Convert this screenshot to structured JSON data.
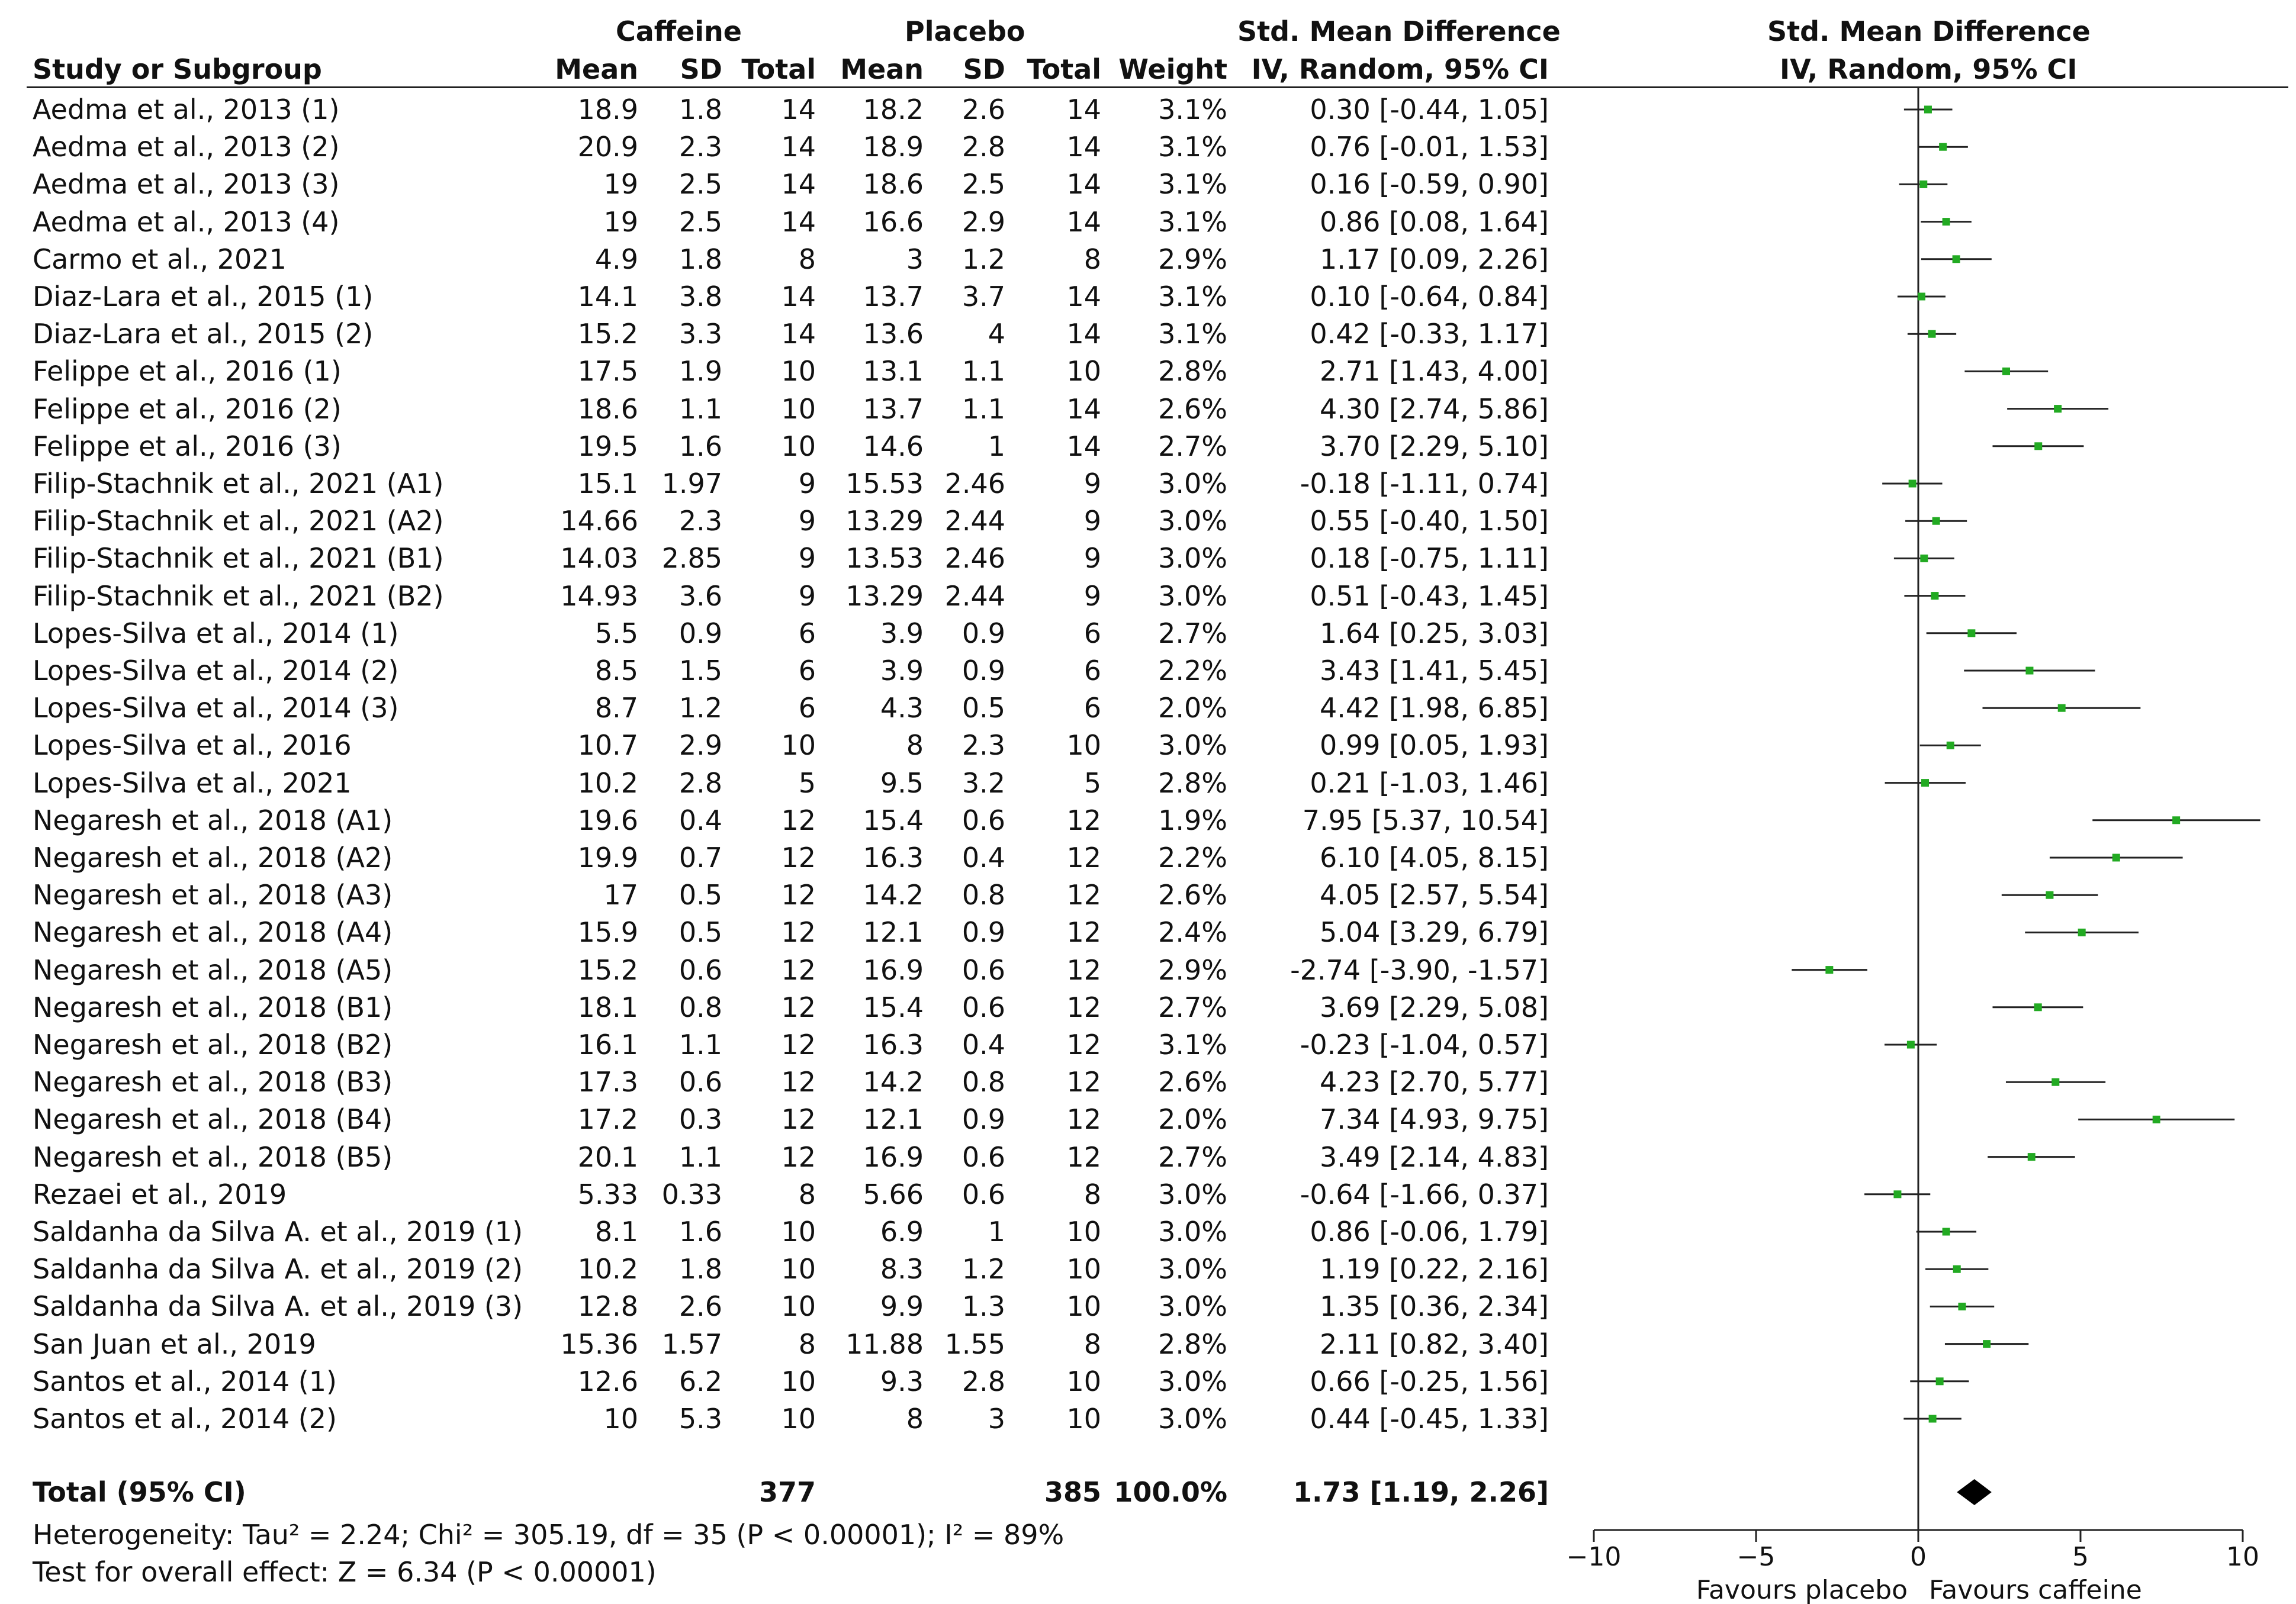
{
  "headers": {
    "study": "Study or Subgroup",
    "caffeine_group": "Caffeine",
    "placebo_group": "Placebo",
    "mean": "Mean",
    "sd": "SD",
    "total": "Total",
    "weight": "Weight",
    "smd_title": "Std. Mean Difference",
    "smd_method": "IV, Random, 95% CI",
    "plot_title": "Std. Mean Difference",
    "plot_method": "IV, Random, 95% CI"
  },
  "rows": [
    {
      "study": "Aedma et al., 2013 (1)",
      "c_mean": "18.9",
      "c_sd": "1.8",
      "c_total": "14",
      "p_mean": "18.2",
      "p_sd": "2.6",
      "p_total": "14",
      "weight": "3.1%",
      "ci": "0.30 [-0.44, 1.05]"
    },
    {
      "study": "Aedma et al., 2013 (2)",
      "c_mean": "20.9",
      "c_sd": "2.3",
      "c_total": "14",
      "p_mean": "18.9",
      "p_sd": "2.8",
      "p_total": "14",
      "weight": "3.1%",
      "ci": "0.76 [-0.01, 1.53]"
    },
    {
      "study": "Aedma et al., 2013 (3)",
      "c_mean": "19",
      "c_sd": "2.5",
      "c_total": "14",
      "p_mean": "18.6",
      "p_sd": "2.5",
      "p_total": "14",
      "weight": "3.1%",
      "ci": "0.16 [-0.59, 0.90]"
    },
    {
      "study": "Aedma et al., 2013 (4)",
      "c_mean": "19",
      "c_sd": "2.5",
      "c_total": "14",
      "p_mean": "16.6",
      "p_sd": "2.9",
      "p_total": "14",
      "weight": "3.1%",
      "ci": "0.86 [0.08, 1.64]"
    },
    {
      "study": "Carmo et al., 2021",
      "c_mean": "4.9",
      "c_sd": "1.8",
      "c_total": "8",
      "p_mean": "3",
      "p_sd": "1.2",
      "p_total": "8",
      "weight": "2.9%",
      "ci": "1.17 [0.09, 2.26]"
    },
    {
      "study": "Diaz-Lara et al., 2015 (1)",
      "c_mean": "14.1",
      "c_sd": "3.8",
      "c_total": "14",
      "p_mean": "13.7",
      "p_sd": "3.7",
      "p_total": "14",
      "weight": "3.1%",
      "ci": "0.10 [-0.64, 0.84]"
    },
    {
      "study": "Diaz-Lara et al., 2015 (2)",
      "c_mean": "15.2",
      "c_sd": "3.3",
      "c_total": "14",
      "p_mean": "13.6",
      "p_sd": "4",
      "p_total": "14",
      "weight": "3.1%",
      "ci": "0.42 [-0.33, 1.17]"
    },
    {
      "study": "Felippe et al., 2016 (1)",
      "c_mean": "17.5",
      "c_sd": "1.9",
      "c_total": "10",
      "p_mean": "13.1",
      "p_sd": "1.1",
      "p_total": "10",
      "weight": "2.8%",
      "ci": "2.71 [1.43, 4.00]"
    },
    {
      "study": "Felippe et al., 2016 (2)",
      "c_mean": "18.6",
      "c_sd": "1.1",
      "c_total": "10",
      "p_mean": "13.7",
      "p_sd": "1.1",
      "p_total": "14",
      "weight": "2.6%",
      "ci": "4.30 [2.74, 5.86]"
    },
    {
      "study": "Felippe et al., 2016 (3)",
      "c_mean": "19.5",
      "c_sd": "1.6",
      "c_total": "10",
      "p_mean": "14.6",
      "p_sd": "1",
      "p_total": "14",
      "weight": "2.7%",
      "ci": "3.70 [2.29, 5.10]"
    },
    {
      "study": "Filip-Stachnik et al., 2021 (A1)",
      "c_mean": "15.1",
      "c_sd": "1.97",
      "c_total": "9",
      "p_mean": "15.53",
      "p_sd": "2.46",
      "p_total": "9",
      "weight": "3.0%",
      "ci": "-0.18 [-1.11, 0.74]"
    },
    {
      "study": "Filip-Stachnik et al., 2021 (A2)",
      "c_mean": "14.66",
      "c_sd": "2.3",
      "c_total": "9",
      "p_mean": "13.29",
      "p_sd": "2.44",
      "p_total": "9",
      "weight": "3.0%",
      "ci": "0.55 [-0.40, 1.50]"
    },
    {
      "study": "Filip-Stachnik et al., 2021 (B1)",
      "c_mean": "14.03",
      "c_sd": "2.85",
      "c_total": "9",
      "p_mean": "13.53",
      "p_sd": "2.46",
      "p_total": "9",
      "weight": "3.0%",
      "ci": "0.18 [-0.75, 1.11]"
    },
    {
      "study": "Filip-Stachnik et al., 2021 (B2)",
      "c_mean": "14.93",
      "c_sd": "3.6",
      "c_total": "9",
      "p_mean": "13.29",
      "p_sd": "2.44",
      "p_total": "9",
      "weight": "3.0%",
      "ci": "0.51 [-0.43, 1.45]"
    },
    {
      "study": "Lopes-Silva et al., 2014 (1)",
      "c_mean": "5.5",
      "c_sd": "0.9",
      "c_total": "6",
      "p_mean": "3.9",
      "p_sd": "0.9",
      "p_total": "6",
      "weight": "2.7%",
      "ci": "1.64 [0.25, 3.03]"
    },
    {
      "study": "Lopes-Silva et al., 2014 (2)",
      "c_mean": "8.5",
      "c_sd": "1.5",
      "c_total": "6",
      "p_mean": "3.9",
      "p_sd": "0.9",
      "p_total": "6",
      "weight": "2.2%",
      "ci": "3.43 [1.41, 5.45]"
    },
    {
      "study": "Lopes-Silva et al., 2014 (3)",
      "c_mean": "8.7",
      "c_sd": "1.2",
      "c_total": "6",
      "p_mean": "4.3",
      "p_sd": "0.5",
      "p_total": "6",
      "weight": "2.0%",
      "ci": "4.42 [1.98, 6.85]"
    },
    {
      "study": "Lopes-Silva et al., 2016",
      "c_mean": "10.7",
      "c_sd": "2.9",
      "c_total": "10",
      "p_mean": "8",
      "p_sd": "2.3",
      "p_total": "10",
      "weight": "3.0%",
      "ci": "0.99 [0.05, 1.93]"
    },
    {
      "study": "Lopes-Silva et al., 2021",
      "c_mean": "10.2",
      "c_sd": "2.8",
      "c_total": "5",
      "p_mean": "9.5",
      "p_sd": "3.2",
      "p_total": "5",
      "weight": "2.8%",
      "ci": "0.21 [-1.03, 1.46]"
    },
    {
      "study": "Negaresh et al., 2018 (A1)",
      "c_mean": "19.6",
      "c_sd": "0.4",
      "c_total": "12",
      "p_mean": "15.4",
      "p_sd": "0.6",
      "p_total": "12",
      "weight": "1.9%",
      "ci": "7.95 [5.37, 10.54]"
    },
    {
      "study": "Negaresh et al., 2018 (A2)",
      "c_mean": "19.9",
      "c_sd": "0.7",
      "c_total": "12",
      "p_mean": "16.3",
      "p_sd": "0.4",
      "p_total": "12",
      "weight": "2.2%",
      "ci": "6.10 [4.05, 8.15]"
    },
    {
      "study": "Negaresh et al., 2018 (A3)",
      "c_mean": "17",
      "c_sd": "0.5",
      "c_total": "12",
      "p_mean": "14.2",
      "p_sd": "0.8",
      "p_total": "12",
      "weight": "2.6%",
      "ci": "4.05 [2.57, 5.54]"
    },
    {
      "study": "Negaresh et al., 2018 (A4)",
      "c_mean": "15.9",
      "c_sd": "0.5",
      "c_total": "12",
      "p_mean": "12.1",
      "p_sd": "0.9",
      "p_total": "12",
      "weight": "2.4%",
      "ci": "5.04 [3.29, 6.79]"
    },
    {
      "study": "Negaresh et al., 2018 (A5)",
      "c_mean": "15.2",
      "c_sd": "0.6",
      "c_total": "12",
      "p_mean": "16.9",
      "p_sd": "0.6",
      "p_total": "12",
      "weight": "2.9%",
      "ci": "-2.74 [-3.90, -1.57]"
    },
    {
      "study": "Negaresh et al., 2018 (B1)",
      "c_mean": "18.1",
      "c_sd": "0.8",
      "c_total": "12",
      "p_mean": "15.4",
      "p_sd": "0.6",
      "p_total": "12",
      "weight": "2.7%",
      "ci": "3.69 [2.29, 5.08]"
    },
    {
      "study": "Negaresh et al., 2018 (B2)",
      "c_mean": "16.1",
      "c_sd": "1.1",
      "c_total": "12",
      "p_mean": "16.3",
      "p_sd": "0.4",
      "p_total": "12",
      "weight": "3.1%",
      "ci": "-0.23 [-1.04, 0.57]"
    },
    {
      "study": "Negaresh et al., 2018 (B3)",
      "c_mean": "17.3",
      "c_sd": "0.6",
      "c_total": "12",
      "p_mean": "14.2",
      "p_sd": "0.8",
      "p_total": "12",
      "weight": "2.6%",
      "ci": "4.23 [2.70, 5.77]"
    },
    {
      "study": "Negaresh et al., 2018 (B4)",
      "c_mean": "17.2",
      "c_sd": "0.3",
      "c_total": "12",
      "p_mean": "12.1",
      "p_sd": "0.9",
      "p_total": "12",
      "weight": "2.0%",
      "ci": "7.34 [4.93, 9.75]"
    },
    {
      "study": "Negaresh et al., 2018 (B5)",
      "c_mean": "20.1",
      "c_sd": "1.1",
      "c_total": "12",
      "p_mean": "16.9",
      "p_sd": "0.6",
      "p_total": "12",
      "weight": "2.7%",
      "ci": "3.49 [2.14, 4.83]"
    },
    {
      "study": "Rezaei et al., 2019",
      "c_mean": "5.33",
      "c_sd": "0.33",
      "c_total": "8",
      "p_mean": "5.66",
      "p_sd": "0.6",
      "p_total": "8",
      "weight": "3.0%",
      "ci": "-0.64 [-1.66, 0.37]"
    },
    {
      "study": "Saldanha da Silva A. et al., 2019 (1)",
      "c_mean": "8.1",
      "c_sd": "1.6",
      "c_total": "10",
      "p_mean": "6.9",
      "p_sd": "1",
      "p_total": "10",
      "weight": "3.0%",
      "ci": "0.86 [-0.06, 1.79]"
    },
    {
      "study": "Saldanha da Silva A. et al., 2019 (2)",
      "c_mean": "10.2",
      "c_sd": "1.8",
      "c_total": "10",
      "p_mean": "8.3",
      "p_sd": "1.2",
      "p_total": "10",
      "weight": "3.0%",
      "ci": "1.19 [0.22, 2.16]"
    },
    {
      "study": "Saldanha da Silva A. et al., 2019 (3)",
      "c_mean": "12.8",
      "c_sd": "2.6",
      "c_total": "10",
      "p_mean": "9.9",
      "p_sd": "1.3",
      "p_total": "10",
      "weight": "3.0%",
      "ci": "1.35 [0.36, 2.34]"
    },
    {
      "study": "San Juan et al., 2019",
      "c_mean": "15.36",
      "c_sd": "1.57",
      "c_total": "8",
      "p_mean": "11.88",
      "p_sd": "1.55",
      "p_total": "8",
      "weight": "2.8%",
      "ci": "2.11 [0.82, 3.40]"
    },
    {
      "study": "Santos et al., 2014 (1)",
      "c_mean": "12.6",
      "c_sd": "6.2",
      "c_total": "10",
      "p_mean": "9.3",
      "p_sd": "2.8",
      "p_total": "10",
      "weight": "3.0%",
      "ci": "0.66 [-0.25, 1.56]"
    },
    {
      "study": "Santos et al., 2014 (2)",
      "c_mean": "10",
      "c_sd": "5.3",
      "c_total": "10",
      "p_mean": "8",
      "p_sd": "3",
      "p_total": "10",
      "weight": "3.0%",
      "ci": "0.44 [-0.45, 1.33]"
    }
  ],
  "total": {
    "label": "Total (95% CI)",
    "c_total": "377",
    "p_total": "385",
    "weight": "100.0%",
    "ci": "1.73 [1.19, 2.26]"
  },
  "footer": {
    "heterogeneity": "Heterogeneity: Tau² = 2.24; Chi² = 305.19, df = 35 (P < 0.00001); I² = 89%",
    "overall": "Test for overall effect: Z = 6.34 (P < 0.00001)"
  },
  "colors": {
    "marker": "#22aa22",
    "line": "#222222",
    "diamond": "#000000"
  },
  "chart_data": {
    "type": "scatter",
    "title": "Std. Mean Difference",
    "subtitle": "IV, Random, 95% CI",
    "xlim": [
      -10,
      10
    ],
    "xticks": [
      -10,
      -5,
      0,
      5,
      10
    ],
    "xtick_labels": [
      "-10",
      "-5",
      "0",
      "5",
      "10"
    ],
    "xlabel_left": "Favours placebo",
    "xlabel_right": "Favours caffeine",
    "points": [
      {
        "est": 0.3,
        "lo": -0.44,
        "hi": 1.05
      },
      {
        "est": 0.76,
        "lo": -0.01,
        "hi": 1.53
      },
      {
        "est": 0.16,
        "lo": -0.59,
        "hi": 0.9
      },
      {
        "est": 0.86,
        "lo": 0.08,
        "hi": 1.64
      },
      {
        "est": 1.17,
        "lo": 0.09,
        "hi": 2.26
      },
      {
        "est": 0.1,
        "lo": -0.64,
        "hi": 0.84
      },
      {
        "est": 0.42,
        "lo": -0.33,
        "hi": 1.17
      },
      {
        "est": 2.71,
        "lo": 1.43,
        "hi": 4.0
      },
      {
        "est": 4.3,
        "lo": 2.74,
        "hi": 5.86
      },
      {
        "est": 3.7,
        "lo": 2.29,
        "hi": 5.1
      },
      {
        "est": -0.18,
        "lo": -1.11,
        "hi": 0.74
      },
      {
        "est": 0.55,
        "lo": -0.4,
        "hi": 1.5
      },
      {
        "est": 0.18,
        "lo": -0.75,
        "hi": 1.11
      },
      {
        "est": 0.51,
        "lo": -0.43,
        "hi": 1.45
      },
      {
        "est": 1.64,
        "lo": 0.25,
        "hi": 3.03
      },
      {
        "est": 3.43,
        "lo": 1.41,
        "hi": 5.45
      },
      {
        "est": 4.42,
        "lo": 1.98,
        "hi": 6.85
      },
      {
        "est": 0.99,
        "lo": 0.05,
        "hi": 1.93
      },
      {
        "est": 0.21,
        "lo": -1.03,
        "hi": 1.46
      },
      {
        "est": 7.95,
        "lo": 5.37,
        "hi": 10.54
      },
      {
        "est": 6.1,
        "lo": 4.05,
        "hi": 8.15
      },
      {
        "est": 4.05,
        "lo": 2.57,
        "hi": 5.54
      },
      {
        "est": 5.04,
        "lo": 3.29,
        "hi": 6.79
      },
      {
        "est": -2.74,
        "lo": -3.9,
        "hi": -1.57
      },
      {
        "est": 3.69,
        "lo": 2.29,
        "hi": 5.08
      },
      {
        "est": -0.23,
        "lo": -1.04,
        "hi": 0.57
      },
      {
        "est": 4.23,
        "lo": 2.7,
        "hi": 5.77
      },
      {
        "est": 7.34,
        "lo": 4.93,
        "hi": 9.75
      },
      {
        "est": 3.49,
        "lo": 2.14,
        "hi": 4.83
      },
      {
        "est": -0.64,
        "lo": -1.66,
        "hi": 0.37
      },
      {
        "est": 0.86,
        "lo": -0.06,
        "hi": 1.79
      },
      {
        "est": 1.19,
        "lo": 0.22,
        "hi": 2.16
      },
      {
        "est": 1.35,
        "lo": 0.36,
        "hi": 2.34
      },
      {
        "est": 2.11,
        "lo": 0.82,
        "hi": 3.4
      },
      {
        "est": 0.66,
        "lo": -0.25,
        "hi": 1.56
      },
      {
        "est": 0.44,
        "lo": -0.45,
        "hi": 1.33
      }
    ],
    "overall": {
      "est": 1.73,
      "lo": 1.19,
      "hi": 2.26
    }
  }
}
